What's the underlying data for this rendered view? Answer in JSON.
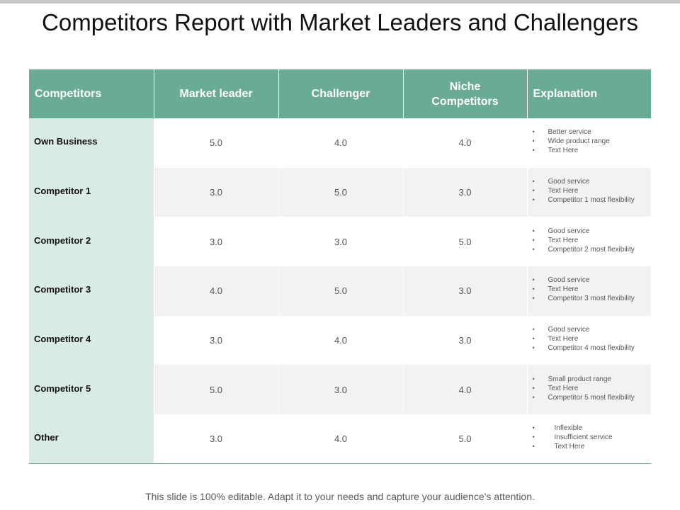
{
  "title": "Competitors Report with Market Leaders and Challengers",
  "table": {
    "headers": {
      "competitors": "Competitors",
      "market_leader": "Market leader",
      "challenger": "Challenger",
      "niche": "Niche Competitors",
      "explanation": "Explanation"
    },
    "rows": [
      {
        "name": "Own Business",
        "market_leader": "5.0",
        "challenger": "4.0",
        "niche": "4.0",
        "explanation": [
          "Better service",
          "Wide product range",
          "Text Here"
        ]
      },
      {
        "name": "Competitor 1",
        "market_leader": "3.0",
        "challenger": "5.0",
        "niche": "3.0",
        "explanation": [
          "Good service",
          "Text Here",
          "Competitor 1 most flexibility"
        ]
      },
      {
        "name": "Competitor 2",
        "market_leader": "3.0",
        "challenger": "3.0",
        "niche": "5.0",
        "explanation": [
          "Good service",
          "Text Here",
          "Competitor 2 most flexibility"
        ]
      },
      {
        "name": "Competitor 3",
        "market_leader": "4.0",
        "challenger": "5.0",
        "niche": "3.0",
        "explanation": [
          "Good service",
          "Text Here",
          "Competitor 3 most flexibility"
        ]
      },
      {
        "name": "Competitor 4",
        "market_leader": "3.0",
        "challenger": "4.0",
        "niche": "3.0",
        "explanation": [
          "Good service",
          "Text Here",
          "Competitor 4 most flexibility"
        ]
      },
      {
        "name": "Competitor 5",
        "market_leader": "5.0",
        "challenger": "3.0",
        "niche": "4.0",
        "explanation": [
          "Small product range",
          "Text Here",
          "Competitor 5 most flexibility"
        ]
      },
      {
        "name": "Other",
        "market_leader": "3.0",
        "challenger": "4.0",
        "niche": "5.0",
        "explanation": [
          "Inflexible",
          "Insufficient service",
          "Text Here"
        ]
      }
    ]
  },
  "footer": "This slide is 100% editable. Adapt it to your needs and capture your audience's attention.",
  "colors": {
    "header_bg": "#6aab97",
    "name_col_bg": "#d9ebe5",
    "stripe_bg": "#f2f2f2"
  }
}
